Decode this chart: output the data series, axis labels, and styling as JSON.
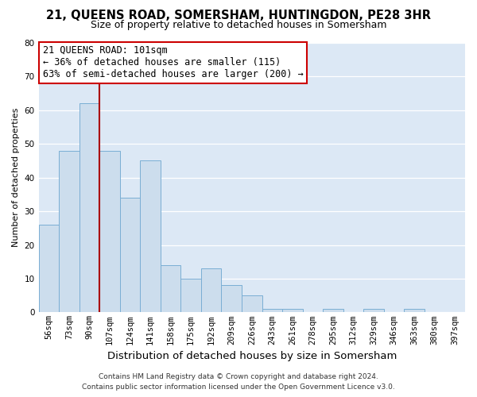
{
  "title": "21, QUEENS ROAD, SOMERSHAM, HUNTINGDON, PE28 3HR",
  "subtitle": "Size of property relative to detached houses in Somersham",
  "xlabel": "Distribution of detached houses by size in Somersham",
  "ylabel": "Number of detached properties",
  "categories": [
    "56sqm",
    "73sqm",
    "90sqm",
    "107sqm",
    "124sqm",
    "141sqm",
    "158sqm",
    "175sqm",
    "192sqm",
    "209sqm",
    "226sqm",
    "243sqm",
    "261sqm",
    "278sqm",
    "295sqm",
    "312sqm",
    "329sqm",
    "346sqm",
    "363sqm",
    "380sqm",
    "397sqm"
  ],
  "values": [
    26,
    48,
    62,
    48,
    34,
    45,
    14,
    10,
    13,
    8,
    5,
    1,
    1,
    0,
    1,
    0,
    1,
    0,
    1,
    0,
    0
  ],
  "bar_color": "#ccdded",
  "bar_edgecolor": "#7aaed4",
  "highlight_line_color": "#aa0000",
  "highlight_line_index": 2,
  "ylim": [
    0,
    80
  ],
  "yticks": [
    0,
    10,
    20,
    30,
    40,
    50,
    60,
    70,
    80
  ],
  "annotation_title": "21 QUEENS ROAD: 101sqm",
  "annotation_line1": "← 36% of detached houses are smaller (115)",
  "annotation_line2": "63% of semi-detached houses are larger (200) →",
  "annotation_box_facecolor": "#ffffff",
  "annotation_box_edgecolor": "#cc0000",
  "footer_line1": "Contains HM Land Registry data © Crown copyright and database right 2024.",
  "footer_line2": "Contains public sector information licensed under the Open Government Licence v3.0.",
  "background_color": "#ffffff",
  "plot_background_color": "#dce8f5",
  "grid_color": "#ffffff",
  "title_fontsize": 10.5,
  "subtitle_fontsize": 9,
  "annotation_fontsize": 8.5,
  "footer_fontsize": 6.5,
  "xlabel_fontsize": 9.5,
  "ylabel_fontsize": 8,
  "tick_fontsize": 7.5
}
